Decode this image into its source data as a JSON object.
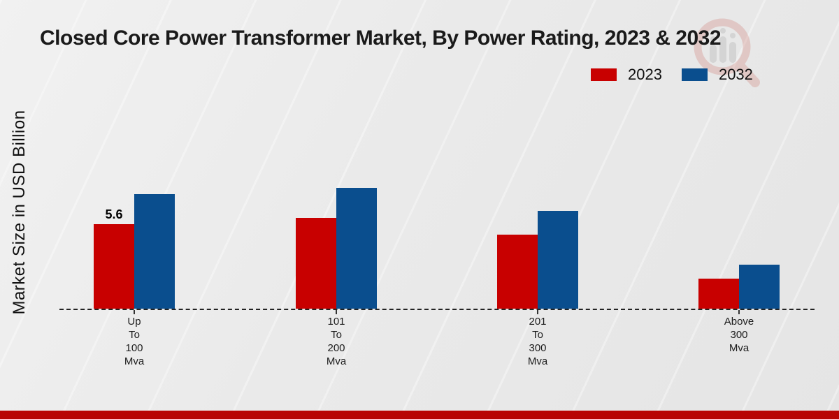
{
  "title": "Closed Core Power Transformer Market, By Power Rating, 2023 & 2032",
  "ylabel": "Market Size in USD Billion",
  "legend": [
    {
      "label": "2023",
      "color": "#c80000"
    },
    {
      "label": "2032",
      "color": "#0a4e8e"
    }
  ],
  "colors": {
    "series_2023": "#c80000",
    "series_2032": "#0a4e8e",
    "footer_band": "#b80404",
    "baseline": "#222222",
    "title_text": "#1a1a1a"
  },
  "watermark": "market-research-logo-magnifier",
  "chart_data": {
    "type": "bar",
    "title": "Closed Core Power Transformer Market, By Power Rating, 2023 & 2032",
    "xlabel": "",
    "ylabel": "Market Size in USD Billion",
    "categories": [
      "Up To 100 Mva",
      "101 To 200 Mva",
      "201 To 300 Mva",
      "Above 300 Mva"
    ],
    "category_lines": [
      [
        "Up",
        "To",
        "100",
        "Mva"
      ],
      [
        "101",
        "To",
        "200",
        "Mva"
      ],
      [
        "201",
        "To",
        "300",
        "Mva"
      ],
      [
        "Above",
        "300",
        "Mva"
      ]
    ],
    "series": [
      {
        "name": "2023",
        "color": "#c80000",
        "values": [
          5.6,
          6.0,
          4.9,
          2.0
        ]
      },
      {
        "name": "2032",
        "color": "#0a4e8e",
        "values": [
          7.6,
          8.0,
          6.5,
          2.9
        ]
      }
    ],
    "annotations": [
      {
        "series_index": 0,
        "point_index": 0,
        "text": "5.6"
      }
    ],
    "ylim": [
      0,
      9
    ],
    "grid": false,
    "baseline_style": "dashed",
    "legend_position": "top-right"
  }
}
